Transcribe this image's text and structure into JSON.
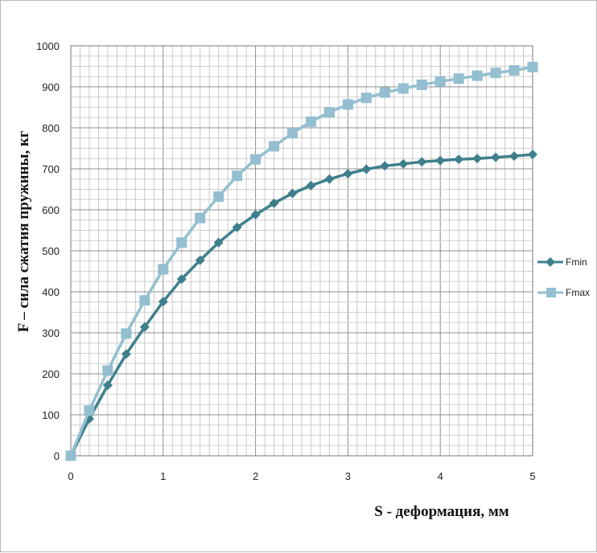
{
  "chart_data": {
    "type": "line",
    "xlabel": "S - деформация, мм",
    "ylabel": "F – сила сжатия пружины, кг",
    "xlim": [
      0,
      5
    ],
    "ylim": [
      0,
      1000
    ],
    "x_ticks": [
      "0",
      "1",
      "2",
      "3",
      "4",
      "5"
    ],
    "y_ticks": [
      "0",
      "100",
      "200",
      "300",
      "400",
      "500",
      "600",
      "700",
      "800",
      "900",
      "1000"
    ],
    "grid": true,
    "legend_position": "right",
    "x": [
      0,
      0.2,
      0.4,
      0.6,
      0.8,
      1.0,
      1.2,
      1.4,
      1.6,
      1.8,
      2.0,
      2.2,
      2.4,
      2.6,
      2.8,
      3.0,
      3.2,
      3.4,
      3.6,
      3.8,
      4.0,
      4.2,
      4.4,
      4.6,
      4.8,
      5.0
    ],
    "series": [
      {
        "name": "Fmin",
        "marker": "diamond",
        "color": "#3f7f8c",
        "values": [
          0,
          90,
          172,
          248,
          314,
          376,
          431,
          477,
          520,
          557,
          588,
          616,
          640,
          659,
          675,
          688,
          699,
          707,
          712,
          717,
          720,
          723,
          725,
          728,
          731,
          735
        ]
      },
      {
        "name": "Fmax",
        "marker": "square",
        "color": "#93bfd0",
        "values": [
          0,
          110,
          208,
          298,
          379,
          455,
          520,
          580,
          632,
          683,
          723,
          755,
          787,
          815,
          838,
          857,
          873,
          886,
          896,
          905,
          913,
          920,
          927,
          934,
          940,
          948
        ]
      }
    ]
  }
}
